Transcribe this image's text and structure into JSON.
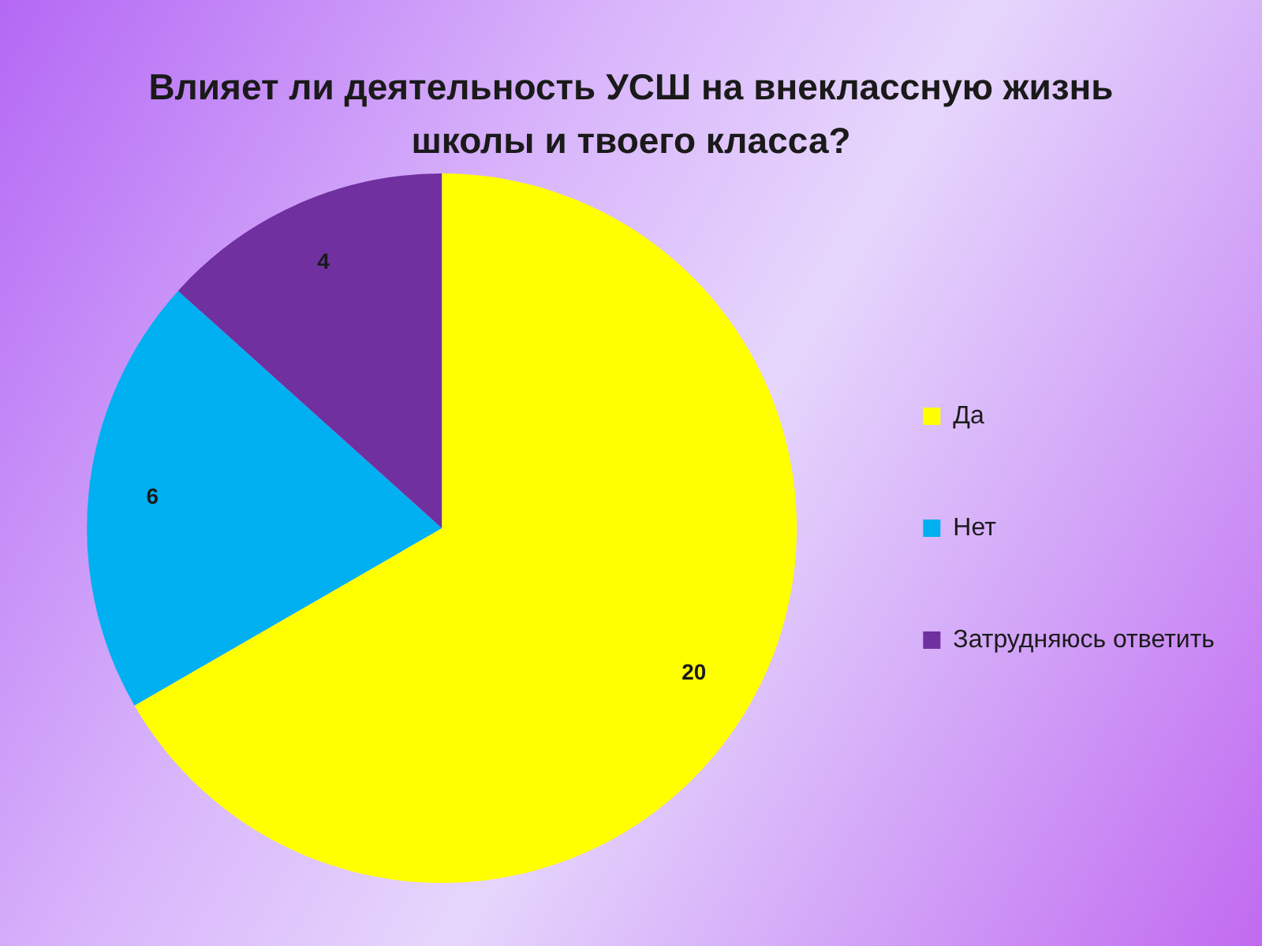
{
  "chart_data": {
    "type": "pie",
    "title": "Влияет ли деятельность УСШ на внеклассную жизнь школы и твоего класса?",
    "categories": [
      "Да",
      "Нет",
      "Затрудняюсь ответить"
    ],
    "values": [
      20,
      6,
      4
    ],
    "colors": [
      "#ffff00",
      "#00b0f0",
      "#7030a0"
    ],
    "data_labels": true,
    "legend": "right"
  }
}
